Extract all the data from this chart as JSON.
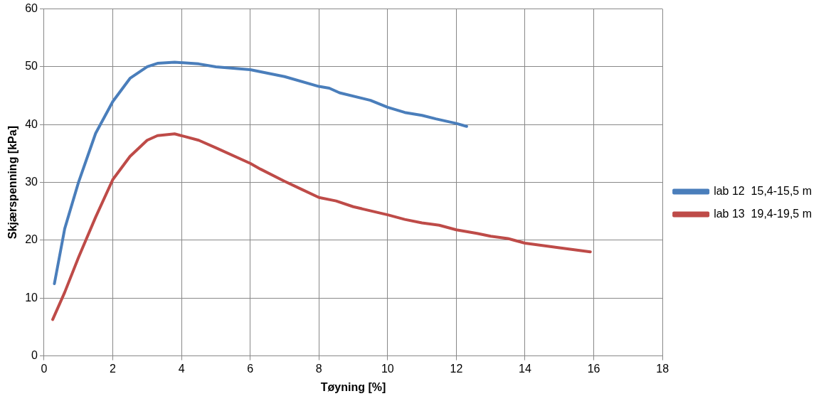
{
  "chart_data": {
    "type": "line",
    "xlabel": "Tøyning [%]",
    "ylabel": "Skjærspenning [kPa]",
    "xlim": [
      0,
      18
    ],
    "xticks": [
      0,
      2,
      4,
      6,
      8,
      10,
      12,
      14,
      16,
      18
    ],
    "ylim": [
      0,
      60
    ],
    "yticks": [
      0,
      10,
      20,
      30,
      40,
      50,
      60
    ],
    "grid": true,
    "legend": "right",
    "marker": "none",
    "line_style": "solid",
    "series": [
      {
        "name": "lab 12  15,4-15,5 m",
        "color": "#4a7ebb",
        "x": [
          0.3,
          0.6,
          1.0,
          1.5,
          2.0,
          2.5,
          3.0,
          3.3,
          3.8,
          4.5,
          5,
          6,
          7,
          8,
          8.3,
          8.6,
          9.5,
          10,
          10.5,
          11,
          11.4,
          12,
          12.3
        ],
        "values": [
          12.5,
          22,
          30,
          38.5,
          44,
          48,
          50,
          50.6,
          50.8,
          50.5,
          50,
          49.5,
          48.3,
          46.6,
          46.3,
          45.5,
          44.2,
          43,
          42.1,
          41.6,
          41,
          40.2,
          39.7
        ]
      },
      {
        "name": "lab 13  19,4-19,5 m",
        "color": "#be4b48",
        "x": [
          0.25,
          0.6,
          1,
          1.5,
          2,
          2.5,
          3,
          3.3,
          3.8,
          4.5,
          5,
          6,
          6.3,
          7,
          7.5,
          8,
          8.5,
          9,
          10,
          10.5,
          11,
          11.5,
          12,
          12.6,
          13,
          13.5,
          14,
          14.5,
          15,
          15.9
        ],
        "values": [
          6.3,
          11,
          17,
          24,
          30.5,
          34.5,
          37.3,
          38.1,
          38.4,
          37.3,
          36,
          33.3,
          32.3,
          30.2,
          28.8,
          27.4,
          26.8,
          25.8,
          24.4,
          23.6,
          23,
          22.6,
          21.8,
          21.2,
          20.7,
          20.3,
          19.5,
          19.1,
          18.7,
          18
        ]
      }
    ]
  }
}
